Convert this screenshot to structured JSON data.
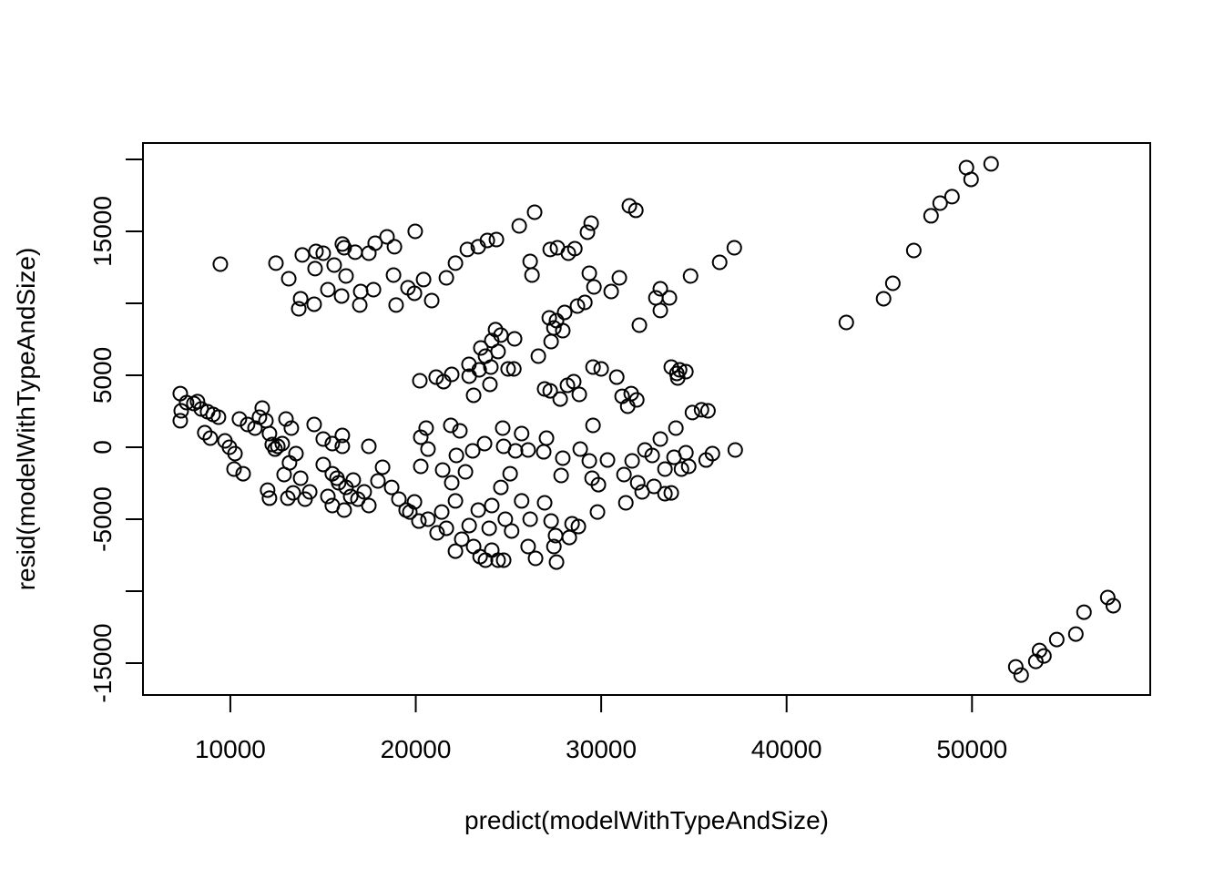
{
  "chart_data": {
    "type": "scatter",
    "xlabel": "predict(modelWithTypeAndSize)",
    "ylabel": "resid(modelWithTypeAndSize)",
    "xlim": [
      5288,
      59612
    ],
    "ylim": [
      -17215,
      21139
    ],
    "xticks": [
      10000,
      20000,
      30000,
      40000,
      50000
    ],
    "yticks": [
      -15000,
      {
        "value": -10000,
        "label": null
      },
      -5000,
      0,
      5000,
      {
        "value": 10000,
        "label": null
      },
      15000,
      {
        "value": 20000,
        "label": null
      }
    ],
    "color": "#000000",
    "x": [
      51030,
      49700,
      49950,
      48920,
      48280,
      47790,
      46860,
      45730,
      45230,
      43220,
      57320,
      57620,
      56040,
      55600,
      54570,
      53640,
      53880,
      53440,
      52360,
      52650,
      9460,
      12460,
      13150,
      13880,
      14620,
      15010,
      16040,
      16140,
      16730,
      17470,
      17810,
      18450,
      18850,
      19970,
      14570,
      15600,
      16240,
      17030,
      17720,
      18800,
      19580,
      20420,
      20860,
      13790,
      13690,
      14520,
      15260,
      16000,
      16980,
      18940,
      19930,
      21650,
      22140,
      22780,
      23370,
      23860,
      24350,
      25580,
      26410,
      26170,
      26270,
      27250,
      27640,
      28230,
      28580,
      29260,
      29460,
      31520,
      31870,
      29360,
      29610,
      30540,
      30980,
      33190,
      33680,
      32950,
      33190,
      34820,
      36390,
      37180,
      27200,
      27590,
      27450,
      28030,
      28720,
      29120,
      27930,
      27300,
      26610,
      25330,
      24300,
      24590,
      24100,
      23510,
      24440,
      23760,
      22870,
      23420,
      24050,
      24980,
      25290,
      24000,
      23120,
      22880,
      21100,
      20220,
      21500,
      21940,
      26950,
      27250,
      27790,
      28180,
      28520,
      28820,
      29560,
      30000,
      30840,
      31130,
      31430,
      31620,
      31920,
      32060,
      33780,
      34080,
      34230,
      34570,
      34130,
      29560,
      7300,
      7350,
      7300,
      7640,
      8030,
      8230,
      8430,
      8770,
      9070,
      9360,
      8620,
      8920,
      9710,
      9950,
      10490,
      10250,
      10200,
      10690,
      10930,
      11330,
      11570,
      11720,
      11920,
      12110,
      12260,
      12410,
      12560,
      12800,
      13000,
      13290,
      13540,
      13190,
      12900,
      12010,
      12110,
      13100,
      13390,
      14030,
      13790,
      14280,
      14520,
      15010,
      15500,
      16040,
      16040,
      17470,
      15010,
      15500,
      15840,
      16240,
      16630,
      15500,
      16140,
      16880,
      17220,
      17470,
      17960,
      18210,
      18700,
      19090,
      19480,
      19930,
      20270,
      20660,
      20560,
      20270,
      21450,
      21940,
      22190,
      22680,
      22140,
      21400,
      20660,
      20170,
      19680,
      21150,
      21650,
      22140,
      22480,
      22880,
      23120,
      23470,
      23760,
      24100,
      24440,
      24740,
      23960,
      23370,
      24100,
      24830,
      25170,
      24590,
      25090,
      24740,
      24690,
      25710,
      26060,
      25380,
      23710,
      23070,
      22380,
      21890,
      25710,
      26170,
      26060,
      26460,
      26950,
      27300,
      27540,
      27450,
      27590,
      27840,
      28430,
      28770,
      28280,
      27930,
      28870,
      29360,
      29510,
      29850,
      29800,
      30340,
      27050,
      26900,
      31230,
      31330,
      31670,
      31970,
      32210,
      32360,
      32750,
      32850,
      33190,
      33440,
      33440,
      33780,
      33930,
      34030,
      34330,
      34570,
      34720,
      34920,
      35410,
      35760,
      35660,
      36000,
      37230,
      15750,
      16490,
      15260
    ],
    "values": [
      19690,
      19430,
      18610,
      17410,
      16960,
      16080,
      13670,
      11390,
      10320,
      8670,
      -10440,
      -11010,
      -11460,
      -12980,
      -13360,
      -14120,
      -14500,
      -14880,
      -15260,
      -15830,
      12720,
      12790,
      11710,
      13360,
      13610,
      13480,
      14120,
      13860,
      13550,
      13480,
      14180,
      14620,
      13930,
      15000,
      12410,
      12660,
      11900,
      10820,
      10950,
      11960,
      11080,
      11650,
      10190,
      10320,
      9620,
      9940,
      10950,
      10510,
      9880,
      9880,
      10700,
      11770,
      12790,
      13740,
      13930,
      14370,
      14430,
      15380,
      16330,
      12910,
      11960,
      13740,
      13860,
      13480,
      13800,
      14940,
      15570,
      16770,
      16460,
      12090,
      11140,
      10820,
      11770,
      11010,
      10380,
      10380,
      9500,
      11900,
      12850,
      13860,
      8990,
      8800,
      8290,
      9370,
      9810,
      10060,
      8100,
      7340,
      6330,
      7530,
      8170,
      7790,
      7410,
      6900,
      6650,
      6330,
      5760,
      5380,
      5570,
      5440,
      5440,
      4370,
      3610,
      4940,
      4870,
      4620,
      4560,
      5060,
      4050,
      3920,
      3350,
      4300,
      4560,
      3670,
      5570,
      5440,
      4870,
      3540,
      2850,
      3730,
      3290,
      8480,
      5570,
      5130,
      5380,
      5250,
      4810,
      1520,
      3730,
      2530,
      1840,
      3100,
      3040,
      3170,
      2660,
      2470,
      2280,
      2090,
      1010,
      630,
      440,
      0,
      1960,
      -440,
      -1520,
      -1840,
      1580,
      1330,
      2090,
      2720,
      1840,
      950,
      190,
      -130,
      60,
      250,
      1960,
      1330,
      -440,
      -1080,
      -1900,
      -2980,
      -3540,
      -3540,
      -3170,
      -3610,
      -2150,
      -3100,
      1580,
      570,
      250,
      820,
      60,
      60,
      -1200,
      -1840,
      -2470,
      -2790,
      -2280,
      -4050,
      -4370,
      -3610,
      -3100,
      -4050,
      -2340,
      -1390,
      -2790,
      -3610,
      -4370,
      -3800,
      -1330,
      -130,
      1330,
      700,
      -1580,
      -2470,
      -570,
      -1710,
      -3730,
      -4500,
      -5000,
      -5130,
      -4500,
      -5950,
      -5630,
      -7220,
      -6390,
      -5440,
      -6900,
      -7600,
      -7850,
      -7150,
      -7850,
      -7850,
      -5630,
      -4370,
      -4050,
      -5000,
      -5820,
      -2790,
      -1840,
      60,
      1330,
      950,
      -190,
      -250,
      250,
      -250,
      1140,
      1520,
      -3730,
      -5000,
      -6900,
      -7720,
      -3860,
      -5130,
      -6140,
      -6900,
      -7980,
      -1960,
      -5320,
      -5510,
      -6270,
      -760,
      -130,
      -950,
      -2150,
      -2600,
      -4500,
      -890,
      630,
      -320,
      -1900,
      -3860,
      -950,
      -2470,
      -3100,
      -190,
      -570,
      -2720,
      570,
      -1520,
      -3230,
      -3170,
      -700,
      1330,
      -1520,
      -380,
      -1330,
      2410,
      2600,
      2530,
      -890,
      -440,
      -190,
      -2150,
      -3420,
      -3420
    ]
  }
}
